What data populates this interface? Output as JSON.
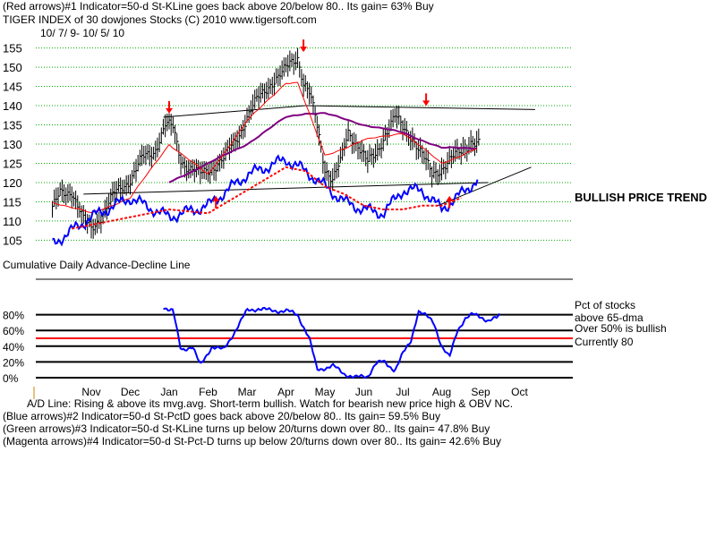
{
  "header": {
    "line1": "(Red arrows)#1 Indicator=50-d St-KLine goes back above 20/below 80.. Its gain= 63% Buy",
    "line2": "TIGER INDEX of  30 dowjones Stocks  (C) 2010  www.tigersoft.com",
    "date_range": "10/ 7/ 9- 10/ 5/ 10"
  },
  "footer": {
    "ad_note": "A/D Line: Rising & above its mvg.avg. Short-term bullish. Watch for bearish new price high & OBV NC.",
    "blue_arrows": "(Blue arrows)#2 Indicator=50-d St-PctD goes back above 20/below 80.. Its gain= 59.5% Buy",
    "green_arrows": "(Green arrows)#3 Indicator=50-d St-KLine turns up below 20/turns down over 80.. Its gain= 47.8% Buy",
    "magenta_arrows": "(Magenta arrows)#4 Indicator=50-d St-Pct-D turns up below 20/turns down over 80.. Its gain= 42.6% Buy"
  },
  "colors": {
    "price_bars": "#000000",
    "ma_fast": "#ff0000",
    "ma_slow": "#800080",
    "ad_line": "#0000ff",
    "ad_ma": "#ff0000",
    "grid": "#00aa00",
    "threshold": "#ff0000"
  },
  "chart_data": [
    {
      "type": "line",
      "title": "TIGER INDEX of  30 dowjones Stocks",
      "annotation": "BULLISH PRICE TREND",
      "ylim": [
        103,
        157
      ],
      "yticks": [
        "155",
        "150",
        "145",
        "140",
        "135",
        "130",
        "125",
        "120",
        "115",
        "110",
        "105"
      ],
      "grid": true,
      "months": [
        "Nov",
        "Dec",
        "Jan",
        "Feb",
        "Mar",
        "Apr",
        "May",
        "Jun",
        "Jul",
        "Aug",
        "Sep",
        "Oct"
      ],
      "month_index": [
        0,
        1,
        2,
        3,
        4,
        5,
        6,
        7,
        8,
        9,
        10,
        11
      ],
      "price_points": [
        [
          -1,
          113
        ],
        [
          -0.8,
          117
        ],
        [
          -0.5,
          118
        ],
        [
          -0.2,
          110
        ],
        [
          0,
          108
        ],
        [
          0.3,
          112
        ],
        [
          0.6,
          117
        ],
        [
          1,
          121
        ],
        [
          1.3,
          126
        ],
        [
          1.6,
          128
        ],
        [
          1.9,
          135
        ],
        [
          2.1,
          134
        ],
        [
          2.3,
          126
        ],
        [
          2.5,
          124
        ],
        [
          2.8,
          122
        ],
        [
          3.1,
          124
        ],
        [
          3.4,
          126
        ],
        [
          3.7,
          131
        ],
        [
          4,
          137
        ],
        [
          4.3,
          142
        ],
        [
          4.6,
          146
        ],
        [
          4.9,
          148
        ],
        [
          5.1,
          151
        ],
        [
          5.3,
          153
        ],
        [
          5.45,
          146
        ],
        [
          5.6,
          143
        ],
        [
          5.75,
          137
        ],
        [
          6,
          124
        ],
        [
          6.2,
          121
        ],
        [
          6.4,
          125
        ],
        [
          6.6,
          133
        ],
        [
          6.85,
          130
        ],
        [
          7.1,
          125
        ],
        [
          7.3,
          127
        ],
        [
          7.55,
          133
        ],
        [
          7.8,
          137
        ],
        [
          8,
          134
        ],
        [
          8.25,
          132
        ],
        [
          8.5,
          127
        ],
        [
          8.75,
          122
        ],
        [
          9,
          124
        ],
        [
          9.25,
          126
        ],
        [
          9.5,
          128
        ],
        [
          9.75,
          131
        ],
        [
          9.95,
          130
        ]
      ],
      "ma_fast": [
        [
          -1,
          115
        ],
        [
          0,
          112
        ],
        [
          1,
          116
        ],
        [
          2,
          130
        ],
        [
          3,
          122
        ],
        [
          4,
          136
        ],
        [
          5,
          146
        ],
        [
          5.3,
          146
        ],
        [
          6,
          127
        ],
        [
          7,
          131
        ],
        [
          8,
          133
        ],
        [
          9,
          125
        ],
        [
          9.95,
          129
        ]
      ],
      "ma_slow": [
        [
          2,
          120
        ],
        [
          3,
          125
        ],
        [
          4,
          130
        ],
        [
          5,
          137
        ],
        [
          5.5,
          138
        ],
        [
          6,
          138
        ],
        [
          7,
          135
        ],
        [
          8,
          133
        ],
        [
          9,
          129
        ],
        [
          9.95,
          129
        ]
      ],
      "ad_line": [
        [
          -1,
          104
        ],
        [
          0,
          111
        ],
        [
          1,
          116
        ],
        [
          1.6,
          113
        ],
        [
          2,
          111
        ],
        [
          3,
          114
        ],
        [
          4,
          122
        ],
        [
          5,
          126
        ],
        [
          5.5,
          123
        ],
        [
          6,
          119
        ],
        [
          6.5,
          115
        ],
        [
          7,
          113
        ],
        [
          7.5,
          112
        ],
        [
          8,
          118
        ],
        [
          8.5,
          118
        ],
        [
          9,
          113
        ],
        [
          9.5,
          117
        ],
        [
          9.95,
          121
        ]
      ],
      "ad_ma": [
        [
          -0.5,
          108
        ],
        [
          0.5,
          110
        ],
        [
          1.5,
          112
        ],
        [
          2,
          113
        ],
        [
          3,
          112
        ],
        [
          4,
          118
        ],
        [
          5,
          124
        ],
        [
          5.5,
          123
        ],
        [
          6,
          119
        ],
        [
          6.5,
          117
        ],
        [
          7,
          114
        ],
        [
          7.5,
          113
        ],
        [
          8,
          113
        ],
        [
          8.5,
          114
        ],
        [
          9,
          114
        ],
        [
          9.5,
          116
        ]
      ],
      "trendlines": [
        {
          "from": [
            1.85,
            137
          ],
          "to": [
            5.5,
            140
          ]
        },
        {
          "from": [
            5.5,
            140
          ],
          "to": [
            11.4,
            139
          ]
        },
        {
          "from": [
            -0.2,
            117
          ],
          "to": [
            10.2,
            120
          ]
        },
        {
          "from": [
            8.9,
            114
          ],
          "to": [
            11.3,
            124
          ]
        }
      ],
      "arrows": [
        {
          "x": 2.0,
          "y": 137,
          "dir": "down"
        },
        {
          "x": 5.45,
          "y": 153,
          "dir": "down"
        },
        {
          "x": 8.6,
          "y": 139,
          "dir": "down"
        },
        {
          "x": 3.2,
          "y": 117,
          "dir": "up"
        },
        {
          "x": 9.2,
          "y": 117,
          "dir": "up"
        }
      ]
    },
    {
      "type": "line",
      "title": "Cumulative Daily Advance-Decline Line",
      "ylim": [
        0,
        100
      ],
      "yticks": [
        {
          "label": "80%",
          "value": 80
        },
        {
          "label": "60%",
          "value": 60
        },
        {
          "label": "40%",
          "value": 40
        },
        {
          "label": "20%",
          "value": 20
        },
        {
          "label": "0%",
          "value": 0
        }
      ],
      "threshold": 50,
      "legend": [
        "Pct of stocks",
        "above 65-dma",
        "Over 50% is bullish",
        "Currently  80"
      ],
      "current": 80,
      "series": [
        {
          "name": "Pct of stocks above 65-dma",
          "points": [
            [
              1.85,
              90
            ],
            [
              2.1,
              85
            ],
            [
              2.3,
              35
            ],
            [
              2.6,
              40
            ],
            [
              2.8,
              15
            ],
            [
              3.1,
              40
            ],
            [
              3.4,
              35
            ],
            [
              3.7,
              60
            ],
            [
              4,
              85
            ],
            [
              4.3,
              88
            ],
            [
              4.6,
              85
            ],
            [
              5,
              85
            ],
            [
              5.3,
              80
            ],
            [
              5.6,
              50
            ],
            [
              5.8,
              10
            ],
            [
              6.2,
              15
            ],
            [
              6.5,
              5
            ],
            [
              6.8,
              0
            ],
            [
              7.1,
              2
            ],
            [
              7.3,
              18
            ],
            [
              7.5,
              20
            ],
            [
              7.8,
              10
            ],
            [
              8,
              30
            ],
            [
              8.2,
              45
            ],
            [
              8.4,
              85
            ],
            [
              8.6,
              78
            ],
            [
              8.8,
              70
            ],
            [
              9,
              40
            ],
            [
              9.2,
              25
            ],
            [
              9.4,
              60
            ],
            [
              9.6,
              75
            ],
            [
              9.8,
              80
            ],
            [
              10,
              78
            ],
            [
              10.2,
              72
            ],
            [
              10.4,
              75
            ],
            [
              10.5,
              80
            ]
          ]
        }
      ]
    }
  ]
}
